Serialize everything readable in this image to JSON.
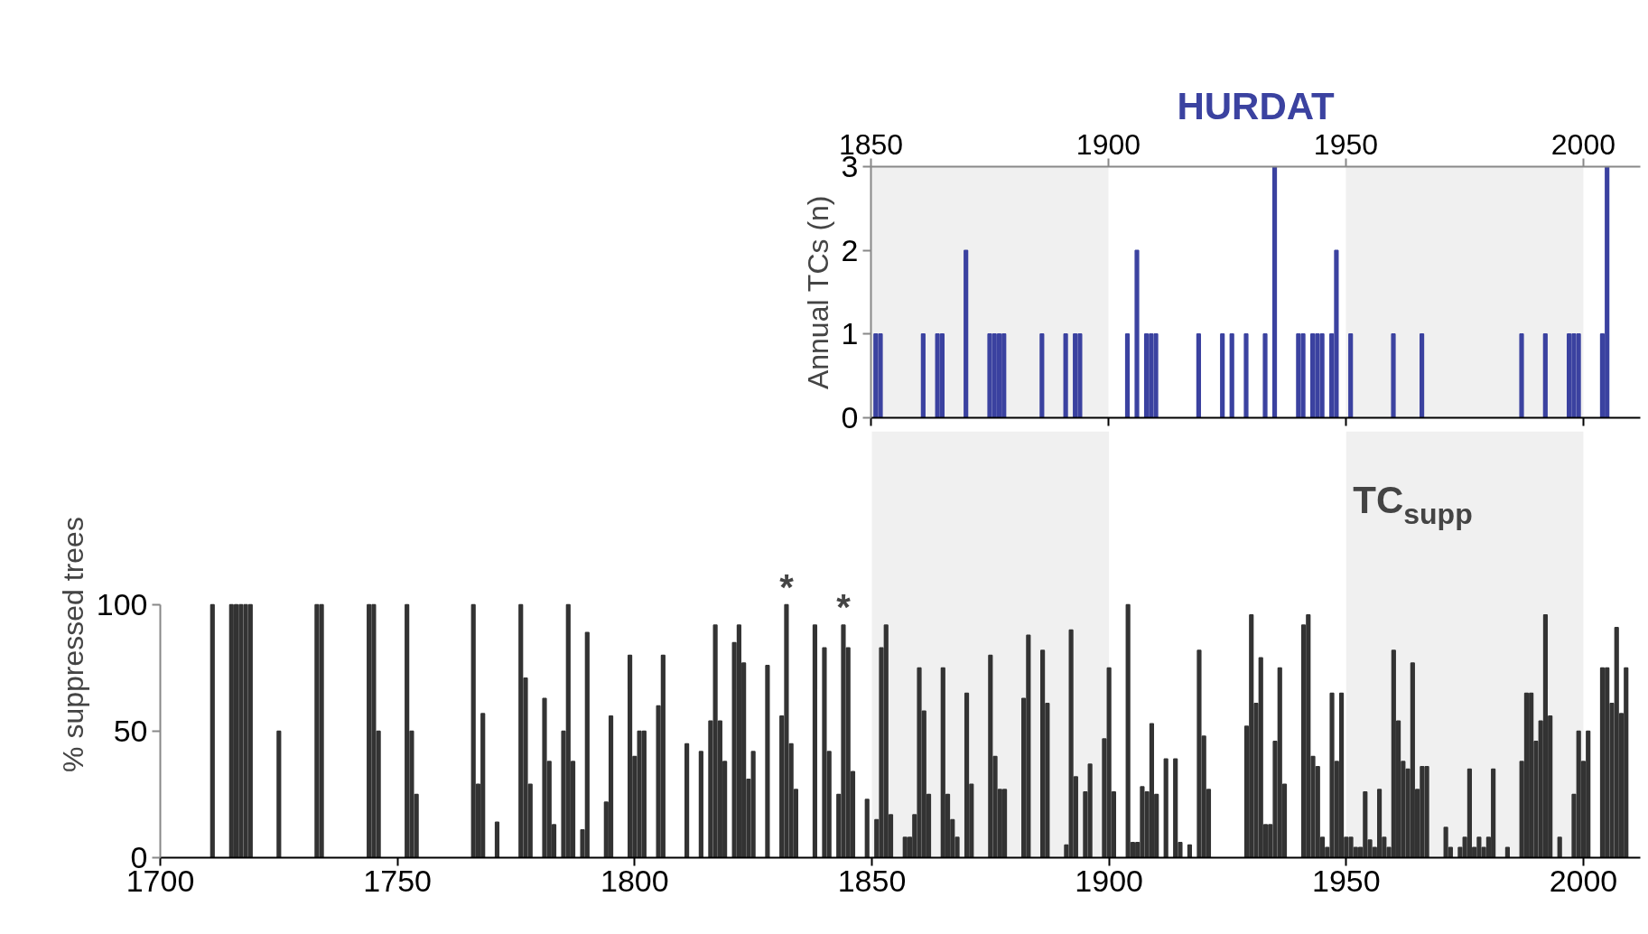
{
  "chart_data": [
    {
      "type": "bar",
      "title": "HURDAT",
      "ylabel": "Annual TCs (n)",
      "xlim": [
        1850,
        2012
      ],
      "xticks": [
        1850,
        1900,
        1950,
        2000
      ],
      "ylim": [
        0,
        3
      ],
      "yticks": [
        0,
        1,
        2,
        3
      ],
      "bands": [
        {
          "axis": "x",
          "from": 1850,
          "to": 1900,
          "color": "#f0f0f0"
        },
        {
          "axis": "x",
          "from": 1950,
          "to": 2000,
          "color": "#f0f0f0"
        }
      ],
      "series": [
        {
          "color": "#3b42a0",
          "x": [
            1851,
            1852,
            1861,
            1864,
            1865,
            1870,
            1875,
            1876,
            1877,
            1878,
            1886,
            1891,
            1893,
            1894,
            1904,
            1906,
            1908,
            1909,
            1910,
            1919,
            1924,
            1926,
            1929,
            1933,
            1935,
            1940,
            1941,
            1943,
            1944,
            1945,
            1947,
            1948,
            1951,
            1960,
            1966,
            1987,
            1992,
            1997,
            1998,
            1999,
            2004,
            2005
          ],
          "values": [
            1,
            1,
            1,
            1,
            1,
            2,
            1,
            1,
            1,
            1,
            1,
            1,
            1,
            1,
            1,
            2,
            1,
            1,
            1,
            1,
            1,
            1,
            1,
            1,
            3,
            1,
            1,
            1,
            1,
            1,
            1,
            2,
            1,
            1,
            1,
            1,
            1,
            1,
            1,
            1,
            1,
            3
          ]
        }
      ]
    },
    {
      "type": "bar",
      "ylabel": "% suppressed trees",
      "xlim": [
        1700,
        2012
      ],
      "xticks": [
        1700,
        1750,
        1800,
        1850,
        1900,
        1950,
        2000
      ],
      "ylim": [
        0,
        100
      ],
      "yticks": [
        0,
        50,
        100
      ],
      "bands": [
        {
          "axis": "x",
          "from": 1850,
          "to": 1900,
          "color": "#f0f0f0"
        },
        {
          "axis": "x",
          "from": 1950,
          "to": 2000,
          "color": "#f0f0f0"
        }
      ],
      "annotations": [
        {
          "text": "*",
          "x": 1832,
          "y": 100
        },
        {
          "text": "*",
          "x": 1844,
          "y": 92
        },
        "TC$_{supp}$"
      ],
      "series": [
        {
          "color": "#333333",
          "x": [
            1711,
            1715,
            1716,
            1717,
            1718,
            1719,
            1725,
            1733,
            1734,
            1744,
            1745,
            1746,
            1752,
            1753,
            1754,
            1766,
            1767,
            1768,
            1771,
            1776,
            1777,
            1778,
            1781,
            1782,
            1783,
            1785,
            1786,
            1787,
            1789,
            1790,
            1794,
            1795,
            1799,
            1800,
            1801,
            1802,
            1805,
            1806,
            1811,
            1814,
            1816,
            1817,
            1818,
            1819,
            1821,
            1822,
            1823,
            1824,
            1825,
            1828,
            1831,
            1832,
            1833,
            1834,
            1838,
            1840,
            1841,
            1843,
            1844,
            1845,
            1846,
            1849,
            1851,
            1852,
            1853,
            1854,
            1857,
            1858,
            1859,
            1860,
            1861,
            1862,
            1865,
            1866,
            1867,
            1868,
            1870,
            1871,
            1875,
            1876,
            1877,
            1878,
            1882,
            1883,
            1886,
            1887,
            1891,
            1892,
            1893,
            1895,
            1896,
            1899,
            1900,
            1901,
            1904,
            1905,
            1906,
            1907,
            1908,
            1909,
            1910,
            1912,
            1914,
            1915,
            1917,
            1919,
            1920,
            1921,
            1929,
            1930,
            1931,
            1932,
            1933,
            1934,
            1935,
            1936,
            1937,
            1941,
            1942,
            1943,
            1944,
            1945,
            1946,
            1947,
            1948,
            1949,
            1950,
            1951,
            1952,
            1953,
            1954,
            1955,
            1956,
            1957,
            1958,
            1959,
            1960,
            1961,
            1962,
            1963,
            1964,
            1965,
            1966,
            1967,
            1971,
            1972,
            1974,
            1975,
            1976,
            1977,
            1978,
            1979,
            1980,
            1981,
            1984,
            1987,
            1988,
            1989,
            1990,
            1991,
            1992,
            1993,
            1995,
            1998,
            1999,
            2000,
            2001,
            2004,
            2005,
            2006,
            2007,
            2008,
            2009
          ],
          "values": [
            100,
            100,
            100,
            100,
            100,
            100,
            50,
            100,
            100,
            100,
            100,
            50,
            100,
            50,
            25,
            100,
            29,
            57,
            14,
            100,
            71,
            29,
            63,
            38,
            13,
            50,
            100,
            38,
            11,
            89,
            22,
            56,
            80,
            40,
            50,
            50,
            60,
            80,
            45,
            42,
            54,
            92,
            54,
            38,
            85,
            92,
            77,
            31,
            42,
            76,
            56,
            100,
            45,
            27,
            92,
            83,
            42,
            25,
            92,
            83,
            34,
            23,
            15,
            83,
            92,
            17,
            8,
            8,
            17,
            75,
            58,
            25,
            75,
            25,
            15,
            8,
            65,
            29,
            80,
            40,
            27,
            27,
            63,
            88,
            82,
            61,
            5,
            90,
            32,
            26,
            37,
            47,
            75,
            26,
            100,
            6,
            6,
            28,
            26,
            53,
            25,
            39,
            39,
            6,
            5,
            82,
            48,
            27,
            52,
            96,
            61,
            79,
            13,
            13,
            46,
            75,
            29,
            92,
            96,
            40,
            36,
            8,
            4,
            65,
            38,
            65,
            8,
            8,
            4,
            4,
            26,
            7,
            4,
            27,
            8,
            4,
            82,
            54,
            38,
            35,
            77,
            27,
            36,
            36,
            12,
            4,
            4,
            8,
            35,
            4,
            8,
            4,
            8,
            35,
            4,
            38,
            65,
            65,
            46,
            54,
            96,
            56,
            8,
            25,
            50,
            38,
            50,
            75,
            75,
            61,
            91,
            57,
            75
          ]
        }
      ]
    }
  ]
}
